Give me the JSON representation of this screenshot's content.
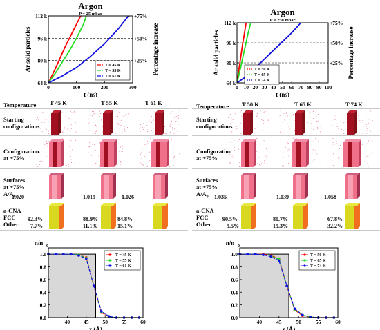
{
  "panels": [
    {
      "title": "Argon",
      "subtitle": "P = 25 mbar",
      "columns": [
        "T 45 K",
        "T 55 K",
        "T 61 K"
      ],
      "area_ratios": [
        "1.020",
        "1.019",
        "1.026"
      ],
      "fcc": [
        "92.3%",
        "88.9%",
        "84.8%"
      ],
      "other": [
        "7.7%",
        "11.1%",
        "15.1%"
      ]
    },
    {
      "title": "Argon",
      "subtitle": "P = 250 mbar",
      "columns": [
        "T 50 K",
        "T 65 K",
        "T 74 K"
      ],
      "area_ratios": [
        "1.035",
        "1.039",
        "1.058"
      ],
      "fcc": [
        "90.5%",
        "80.7%",
        "67.8%"
      ],
      "other": [
        "9.5%",
        "19.3%",
        "32.2%"
      ]
    }
  ],
  "row_labels": {
    "temperature": "Temperature",
    "starting_1": "Starting",
    "starting_2": "configurations",
    "config_1": "Configuration",
    "config_2": "at +75%",
    "surfaces_1": "Surfaces",
    "surfaces_2": "at +75%",
    "area": "A/A",
    "area_sub": "0",
    "cna": "a-CNA",
    "fcc": "FCC",
    "other": "Other"
  },
  "colors": {
    "red": "#ff0000",
    "green": "#22dd22",
    "blue": "#1010e0",
    "crystal_dark": "#a01020",
    "crystal_light": "#f0708a",
    "fcc_yellow": "#d8d820",
    "other_orange": "#f07020"
  },
  "chart_data": [
    {
      "type": "line",
      "title": "Argon",
      "subtitle": "P = 25 mbar",
      "xlabel": "t (ns)",
      "ylabel": "Ar solid particles",
      "y2label": "Percentage increase",
      "xlim": [
        0,
        300
      ],
      "ylim": [
        64,
        112
      ],
      "x_ticks": [
        "0",
        "100",
        "200",
        "300"
      ],
      "x_tick_values": [
        0,
        100,
        200,
        300
      ],
      "y_ticks": [
        "64 k",
        "80 k",
        "96 k",
        "112 k"
      ],
      "y_tick_values": [
        64,
        80,
        96,
        112
      ],
      "y2_ticks": [
        "+25%",
        "+50%",
        "+75%"
      ],
      "y2_tick_values": [
        80,
        96,
        112
      ],
      "grid": "dashed horizontal at +25%, +50%, +75%",
      "legend": "lower-right",
      "series": [
        {
          "name": "T = 45 K",
          "color": "#ff0000",
          "x": [
            0,
            20,
            40,
            60,
            80,
            100,
            115
          ],
          "y": [
            64,
            72,
            81,
            90,
            98,
            106,
            112
          ]
        },
        {
          "name": "T = 55 K",
          "color": "#22dd22",
          "x": [
            0,
            25,
            50,
            75,
            100,
            125,
            135
          ],
          "y": [
            64,
            71,
            79,
            87,
            96,
            106,
            112
          ]
        },
        {
          "name": "T = 61 K",
          "color": "#1010e0",
          "x": [
            0,
            50,
            100,
            150,
            200,
            250,
            285
          ],
          "y": [
            64,
            69,
            75,
            83,
            92,
            103,
            112
          ]
        }
      ]
    },
    {
      "type": "line",
      "title": "Argon",
      "subtitle": "P = 250 mbar",
      "xlabel": "t (ns)",
      "ylabel": "Ar solid particles",
      "y2label": "Percentage increase",
      "xlim": [
        0,
        100
      ],
      "ylim": [
        64,
        112
      ],
      "x_ticks": [
        "0",
        "10",
        "20",
        "30",
        "40",
        "50",
        "60",
        "70",
        "80",
        "90",
        "100"
      ],
      "x_tick_values": [
        0,
        10,
        20,
        30,
        40,
        50,
        60,
        70,
        80,
        90,
        100
      ],
      "y_ticks": [
        "64 k",
        "80 k",
        "96 k",
        "112 k"
      ],
      "y_tick_values": [
        64,
        80,
        96,
        112
      ],
      "y2_ticks": [
        "+25%",
        "+50%",
        "+75%"
      ],
      "y2_tick_values": [
        80,
        96,
        112
      ],
      "grid": "dashed horizontal at +25%, +50%, +75%",
      "legend": "lower-left",
      "series": [
        {
          "name": "T = 50 K",
          "color": "#ff0000",
          "x": [
            0,
            2,
            4,
            6,
            8,
            10
          ],
          "y": [
            64,
            74,
            84,
            94,
            103,
            112
          ]
        },
        {
          "name": "T = 65 K",
          "color": "#22dd22",
          "x": [
            0,
            3,
            6,
            9,
            12,
            15
          ],
          "y": [
            64,
            73,
            83,
            93,
            103,
            112
          ]
        },
        {
          "name": "T = 74 K",
          "color": "#1010e0",
          "x": [
            0,
            10,
            20,
            30,
            40,
            50,
            60,
            70
          ],
          "y": [
            64,
            69,
            76,
            83,
            90,
            97,
            104,
            112
          ]
        }
      ]
    },
    {
      "type": "line",
      "ylabel": "n/n",
      "ylabel_sub": "0",
      "xlabel": "z (Å)",
      "xlim": [
        35,
        60
      ],
      "ylim": [
        0,
        1.1
      ],
      "x_ticks": [
        "40",
        "45",
        "50",
        "55",
        "60"
      ],
      "x_tick_values": [
        40,
        45,
        50,
        55,
        60
      ],
      "y_ticks": [
        "0.0",
        "0.2",
        "0.4",
        "0.6",
        "0.8",
        "1.0"
      ],
      "y_tick_values": [
        0,
        0.2,
        0.4,
        0.6,
        0.8,
        1.0
      ],
      "step_profile": {
        "x": [
          35,
          47.5,
          47.5
        ],
        "y": [
          1.0,
          1.0,
          0
        ]
      },
      "legend": "top-right",
      "series": [
        {
          "name": "T = 45 K",
          "color": "#ff0000",
          "x": [
            35,
            37,
            39,
            41,
            43,
            45,
            47,
            49,
            51,
            53,
            55,
            57,
            59
          ],
          "y": [
            1.0,
            1.0,
            1.0,
            1.0,
            0.99,
            0.95,
            0.5,
            0.08,
            0.01,
            0,
            0,
            0,
            0
          ]
        },
        {
          "name": "T = 55 K",
          "color": "#22dd22",
          "x": [
            35,
            37,
            39,
            41,
            43,
            45,
            47,
            49,
            51,
            53,
            55,
            57,
            59
          ],
          "y": [
            1.0,
            1.0,
            1.0,
            1.0,
            0.99,
            0.94,
            0.5,
            0.09,
            0.01,
            0,
            0,
            0,
            0
          ]
        },
        {
          "name": "T = 61 K",
          "color": "#1010e0",
          "x": [
            35,
            37,
            39,
            41,
            43,
            45,
            47,
            49,
            51,
            53,
            55,
            57,
            59
          ],
          "y": [
            1.0,
            1.0,
            1.0,
            1.0,
            0.98,
            0.93,
            0.5,
            0.1,
            0.02,
            0,
            0,
            0,
            0
          ]
        }
      ]
    },
    {
      "type": "line",
      "ylabel": "n/n",
      "ylabel_sub": "0",
      "xlabel": "z (Å)",
      "xlim": [
        35,
        60
      ],
      "ylim": [
        0,
        1.1
      ],
      "x_ticks": [
        "40",
        "45",
        "50",
        "55",
        "60"
      ],
      "x_tick_values": [
        40,
        45,
        50,
        55,
        60
      ],
      "y_ticks": [
        "0.0",
        "0.2",
        "0.4",
        "0.6",
        "0.8",
        "1.0"
      ],
      "y_tick_values": [
        0,
        0.2,
        0.4,
        0.6,
        0.8,
        1.0
      ],
      "step_profile": {
        "x": [
          35,
          47.5,
          47.5
        ],
        "y": [
          1.0,
          1.0,
          0
        ]
      },
      "legend": "top-right",
      "series": [
        {
          "name": "T = 50 K",
          "color": "#ff0000",
          "x": [
            35,
            37,
            39,
            41,
            43,
            45,
            47,
            49,
            51,
            53,
            55,
            57,
            59
          ],
          "y": [
            1.0,
            1.0,
            1.0,
            1.0,
            0.98,
            0.93,
            0.5,
            0.12,
            0.03,
            0.01,
            0,
            0,
            0
          ]
        },
        {
          "name": "T = 65 K",
          "color": "#22dd22",
          "x": [
            35,
            37,
            39,
            41,
            43,
            45,
            47,
            49,
            51,
            53,
            55,
            57,
            59
          ],
          "y": [
            1.0,
            1.0,
            1.0,
            0.99,
            0.97,
            0.92,
            0.5,
            0.13,
            0.04,
            0.01,
            0,
            0,
            0
          ]
        },
        {
          "name": "T = 74 K",
          "color": "#1010e0",
          "x": [
            35,
            37,
            39,
            41,
            43,
            45,
            47,
            49,
            51,
            53,
            55,
            57,
            59
          ],
          "y": [
            1.0,
            1.0,
            1.0,
            0.99,
            0.96,
            0.9,
            0.5,
            0.14,
            0.04,
            0.01,
            0,
            0,
            0
          ]
        }
      ]
    }
  ]
}
